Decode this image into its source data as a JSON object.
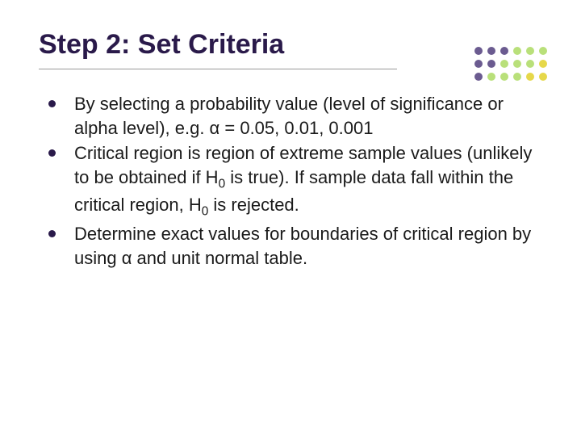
{
  "title": "Step 2: Set Criteria",
  "title_color": "#2a1a4a",
  "title_fontsize": 34,
  "underline_color": "#999999",
  "body_fontsize": 22,
  "body_color": "#1a1a1a",
  "bullet_color": "#2a1a4a",
  "bullets": [
    {
      "html": "By selecting a probability value (level of significance or alpha level), e.g. α = 0.05, 0.01, 0.001"
    },
    {
      "html": "Critical region is region of extreme sample values (unlikely to be obtained if H<sub>0</sub> is true). If sample data fall within the critical region, H<sub>0</sub> is rejected."
    },
    {
      "html": "Determine exact values for boundaries of critical region by using α and unit normal table."
    }
  ],
  "decor_dots": {
    "rows": 3,
    "cols": 6,
    "spacing": 16,
    "radius": 5,
    "colors": [
      [
        "#6b5b90",
        "#6b5b90",
        "#6b5b90",
        "#b9e07a",
        "#b9e07a",
        "#b9e07a"
      ],
      [
        "#6b5b90",
        "#6b5b90",
        "#b9e07a",
        "#b9e07a",
        "#b9e07a",
        "#e6d84a"
      ],
      [
        "#6b5b90",
        "#b9e07a",
        "#b9e07a",
        "#b9e07a",
        "#e6d84a",
        "#e6d84a"
      ]
    ]
  }
}
